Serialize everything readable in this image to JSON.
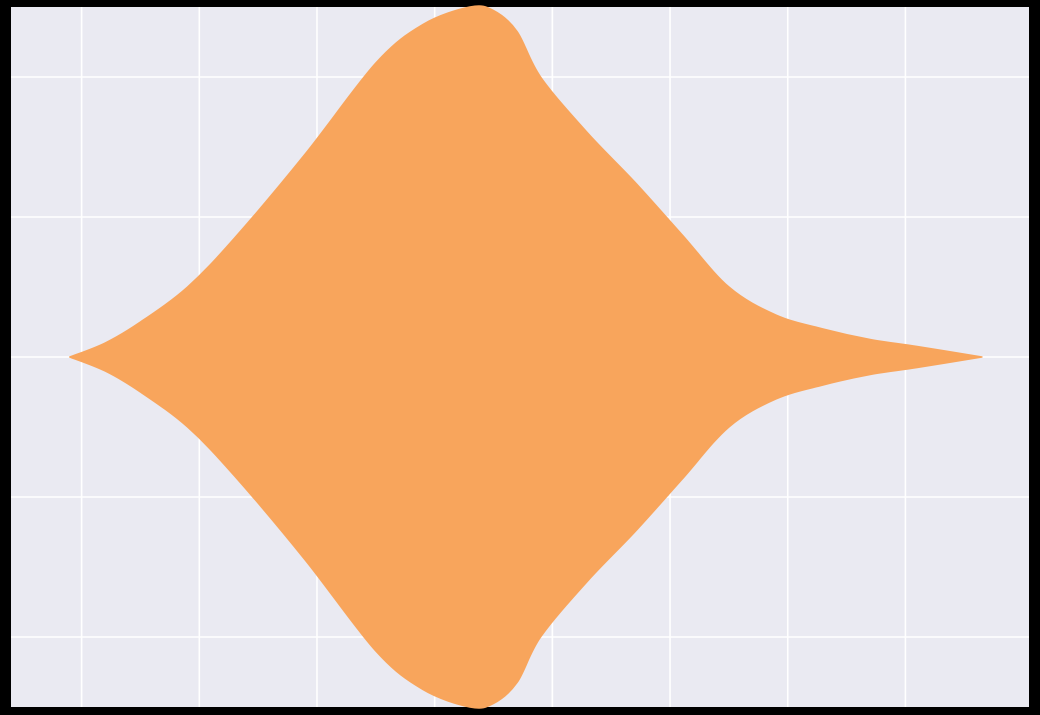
{
  "chart_data": {
    "type": "violin",
    "orientation": "horizontal",
    "title": "",
    "xlabel": "",
    "ylabel": "",
    "grid": true,
    "legend": "none",
    "xlim": [
      -4.1,
      4.55
    ],
    "ylim": [
      -0.5,
      0.5
    ],
    "x_gridlines": [
      -3.5,
      -2.5,
      -1.5,
      -0.5,
      0.5,
      1.5,
      2.5,
      3.5
    ],
    "y_gridlines": [
      -0.4,
      -0.2,
      0.0,
      0.2,
      0.4
    ],
    "series": [
      {
        "center": 0,
        "half_width_max": 0.5,
        "density_profile": {
          "x": [
            -3.6,
            -3.3,
            -3.0,
            -2.6,
            -2.2,
            -1.6,
            -1.0,
            -0.6,
            -0.2,
            0.0,
            0.2,
            0.4,
            0.8,
            1.2,
            1.6,
            2.0,
            2.4,
            2.8,
            3.2,
            3.6,
            4.15
          ],
          "rel_width": [
            0.0,
            0.04,
            0.1,
            0.2,
            0.34,
            0.58,
            0.84,
            0.95,
            1.0,
            0.99,
            0.93,
            0.8,
            0.64,
            0.5,
            0.35,
            0.2,
            0.12,
            0.08,
            0.05,
            0.03,
            0.0
          ]
        },
        "color": "#f8a55c"
      }
    ],
    "colors": {
      "plot_background": "#eaeaf2",
      "figure_background": "#000000",
      "grid": "#ffffff",
      "violin_fill": "#f8a55c"
    }
  }
}
